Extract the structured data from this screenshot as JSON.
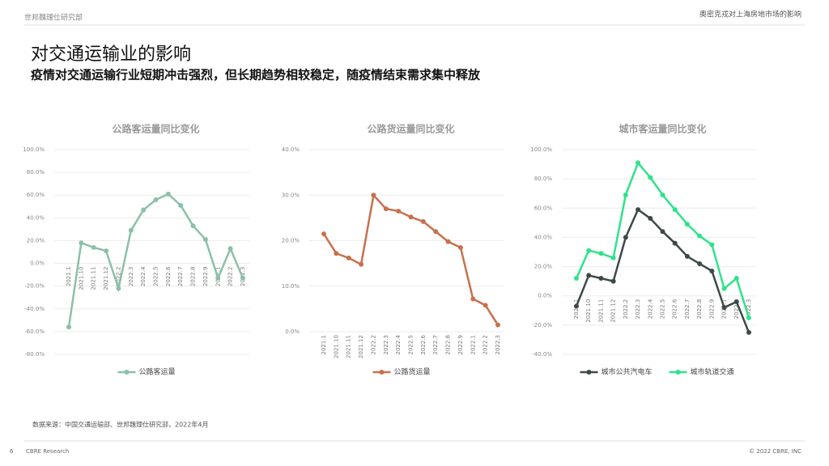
{
  "header": {
    "org": "世邦魏理仕研究部",
    "report": "奥密克戎对上海房地市场的影响",
    "title": "对交通运输业的影响",
    "subtitle": "疫情对交通运输行业短期冲击强烈，但长期趋势相较稳定，随疫情结束需求集中释放"
  },
  "source": "数据来源：中国交通运输部、世邦魏理仕研究部，2022年4月",
  "footer": {
    "page": "6",
    "brand": "CBRE Research",
    "copyright": "© 2022 CBRE, INC"
  },
  "chart_data": [
    {
      "type": "line",
      "title": "公路客运量同比变化",
      "categories": [
        "2021.1",
        "2021.10",
        "2021.11",
        "2021.12",
        "2022.2",
        "2022.3",
        "2022.4",
        "2022.5",
        "2022.6",
        "2022.7",
        "2022.8",
        "2022.9",
        "2022.1",
        "2022.2",
        "2022.3"
      ],
      "series": [
        {
          "name": "公路客运量",
          "color": "#8cc0a8",
          "values": [
            -56,
            18,
            14,
            11,
            -22,
            29,
            47,
            56,
            61,
            51,
            33,
            21,
            -13,
            13,
            -13
          ]
        }
      ],
      "ylim": [
        -80,
        100
      ],
      "yticks": [
        {
          "value": -80,
          "label": "-80.0%"
        },
        {
          "value": -60,
          "label": "-60.0%"
        },
        {
          "value": -40,
          "label": "-40.0%"
        },
        {
          "value": -20,
          "label": "-20.0%"
        },
        {
          "value": 0,
          "label": "0.0%"
        },
        {
          "value": 20,
          "label": "20.0%"
        },
        {
          "value": 40,
          "label": "40.0%"
        },
        {
          "value": 60,
          "label": "60.0%"
        },
        {
          "value": 80,
          "label": "80.0%"
        },
        {
          "value": 100,
          "label": "100.0%"
        }
      ],
      "grid": true,
      "legend": "bottom"
    },
    {
      "type": "line",
      "title": "公路货运量同比变化",
      "categories": [
        "2021.1",
        "2021.10",
        "2021.11",
        "2021.12",
        "2022.2",
        "2022.3",
        "2022.4",
        "2022.5",
        "2022.6",
        "2022.7",
        "2022.8",
        "2022.9",
        "2022.1",
        "2022.2",
        "2022.3"
      ],
      "series": [
        {
          "name": "公路货运量",
          "color": "#c8704e",
          "values": [
            21.5,
            17.2,
            16.2,
            14.8,
            30,
            27,
            26.5,
            25.2,
            24.2,
            22,
            19.8,
            18.5,
            7.2,
            5.8,
            1.5
          ]
        }
      ],
      "ylim": [
        0,
        40
      ],
      "yticks": [
        {
          "value": 0,
          "label": "0.0%"
        },
        {
          "value": 10,
          "label": "10.0%"
        },
        {
          "value": 20,
          "label": "20.0%"
        },
        {
          "value": 30,
          "label": "30.0%"
        },
        {
          "value": 40,
          "label": "40.0%"
        }
      ],
      "grid": true,
      "legend": "bottom"
    },
    {
      "type": "line",
      "title": "城市客运量同比变化",
      "categories": [
        "2021.1",
        "2021.10",
        "2021.11",
        "2021.12",
        "2022.2",
        "2022.3",
        "2022.4",
        "2022.5",
        "2022.6",
        "2022.7",
        "2022.8",
        "2022.9",
        "2022.1",
        "2022.2",
        "2022.3"
      ],
      "series": [
        {
          "name": "城市公共汽电车",
          "color": "#3d4a47",
          "values": [
            -7,
            14,
            12,
            10,
            40,
            59,
            53,
            44,
            36,
            27,
            22,
            17,
            -8,
            -4,
            -25
          ]
        },
        {
          "name": "城市轨道交通",
          "color": "#2ee38a",
          "values": [
            12,
            31,
            29,
            26,
            69,
            91,
            81,
            69,
            59,
            49,
            41,
            35,
            5,
            12,
            -15
          ]
        }
      ],
      "ylim": [
        -40,
        100
      ],
      "yticks": [
        {
          "value": -40,
          "label": "-40.0%"
        },
        {
          "value": -20,
          "label": "-20.0%"
        },
        {
          "value": 0,
          "label": "0.0%"
        },
        {
          "value": 20,
          "label": "20.0%"
        },
        {
          "value": 40,
          "label": "40.0%"
        },
        {
          "value": 60,
          "label": "60.0%"
        },
        {
          "value": 80,
          "label": "80.0%"
        },
        {
          "value": 100,
          "label": "100.0%"
        }
      ],
      "grid": true,
      "legend": "bottom"
    }
  ]
}
